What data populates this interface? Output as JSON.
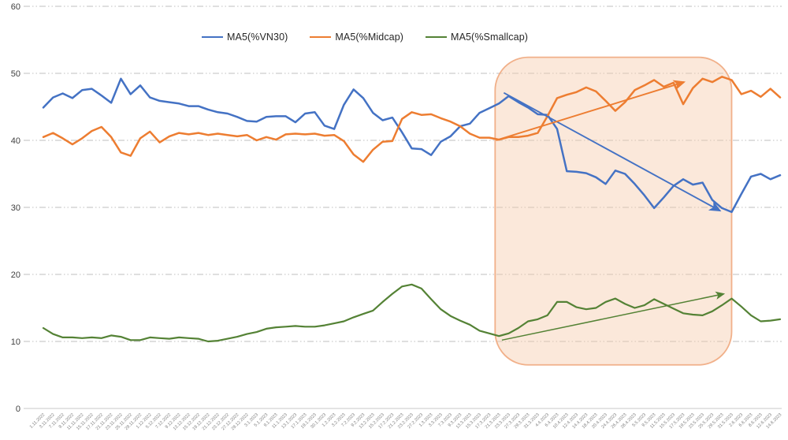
{
  "chart_data": {
    "type": "line",
    "title": "",
    "xlabel": "",
    "ylabel": "",
    "ylim": [
      0,
      60
    ],
    "yticks": [
      0,
      10,
      20,
      30,
      40,
      50,
      60
    ],
    "grid": "horizontal dash-dot",
    "grid_color": "#BFBFBF",
    "axis_label_color": "#404040",
    "x_label_color": "#808080",
    "legend_position": "top-center",
    "categories": [
      "1.11.2022",
      "3.11.2022",
      "7.11.2022",
      "9.11.2022",
      "11.11.2022",
      "15.11.2022",
      "17.11.2022",
      "21.11.2022",
      "23.11.2022",
      "25.11.2022",
      "29.11.2022",
      "1.12.2022",
      "5.12.2022",
      "7.12.2022",
      "9.12.2022",
      "13.12.2022",
      "15.12.2022",
      "19.12.2022",
      "21.12.2022",
      "23.12.2022",
      "27.12.2022",
      "29.12.2022",
      "3.1.2023",
      "5.1.2023",
      "9.1.2023",
      "11.1.2023",
      "13.1.2023",
      "17.1.2023",
      "19.1.2023",
      "30.1.2023",
      "1.2.2023",
      "3.2.2023",
      "7.2.2023",
      "9.2.2023",
      "13.2.2023",
      "15.2.2023",
      "17.2.2023",
      "21.2.2023",
      "23.2.2023",
      "27.2.2023",
      "1.3.2023",
      "3.3.2023",
      "7.3.2023",
      "9.3.2023",
      "13.3.2023",
      "15.3.2023",
      "17.3.2023",
      "21.3.2023",
      "23.3.2023",
      "27.3.2023",
      "29.3.2023",
      "31.3.2023",
      "4.4.2023",
      "6.4.2023",
      "10.4.2023",
      "12.4.2023",
      "14.4.2023",
      "18.4.2023",
      "20.4.2023",
      "24.4.2023",
      "26.4.2023",
      "28.4.2023",
      "5.5.2023",
      "9.5.2023",
      "11.5.2023",
      "15.5.2023",
      "17.5.2023",
      "19.5.2023",
      "23.5.2023",
      "25.5.2023",
      "29.5.2023",
      "31.5.2023",
      "2.6.2023",
      "6.6.2023",
      "8.6.2023",
      "12.6.2023",
      "14.6.2023"
    ],
    "series": [
      {
        "name": "MA5(%VN30)",
        "color": "#4472C4",
        "values": [
          44.9,
          46.4,
          47.0,
          46.3,
          47.5,
          47.7,
          46.7,
          45.6,
          49.2,
          46.9,
          48.2,
          46.4,
          45.9,
          45.7,
          45.5,
          45.1,
          45.1,
          44.6,
          44.2,
          44.0,
          43.5,
          42.9,
          42.8,
          43.5,
          43.6,
          43.6,
          42.7,
          44.0,
          44.2,
          42.2,
          41.7,
          45.3,
          47.6,
          46.3,
          44.1,
          43.0,
          43.4,
          41.2,
          38.8,
          38.7,
          37.8,
          39.8,
          40.6,
          42.1,
          42.5,
          44.1,
          44.8,
          45.5,
          46.6,
          45.7,
          44.9,
          43.9,
          43.8,
          41.7,
          35.4,
          35.3,
          35.1,
          34.5,
          33.5,
          35.5,
          35.0,
          33.5,
          31.8,
          29.9,
          31.5,
          33.2,
          34.2,
          33.4,
          33.7,
          31.1,
          29.9,
          29.3,
          32.0,
          34.6,
          35.0,
          34.2,
          34.8
        ]
      },
      {
        "name": "MA5(%Midcap)",
        "color": "#ED7D31",
        "values": [
          40.5,
          41.1,
          40.3,
          39.4,
          40.3,
          41.4,
          42.0,
          40.5,
          38.2,
          37.7,
          40.3,
          41.3,
          39.7,
          40.6,
          41.1,
          40.9,
          41.1,
          40.8,
          41.0,
          40.8,
          40.6,
          40.8,
          40.0,
          40.5,
          40.1,
          40.9,
          41.0,
          40.9,
          41.0,
          40.7,
          40.8,
          39.9,
          37.9,
          36.8,
          38.6,
          39.8,
          39.9,
          43.2,
          44.2,
          43.8,
          43.9,
          43.3,
          42.8,
          42.1,
          41.0,
          40.4,
          40.4,
          40.1,
          40.5,
          40.5,
          40.7,
          41.1,
          43.6,
          46.3,
          46.8,
          47.2,
          47.9,
          47.3,
          45.9,
          44.4,
          45.7,
          47.5,
          48.2,
          49.0,
          48.0,
          48.6,
          45.4,
          47.8,
          49.2,
          48.7,
          49.5,
          49.0,
          46.9,
          47.4,
          46.5,
          47.7,
          46.4
        ]
      },
      {
        "name": "MA5(%Smallcap)",
        "color": "#548235",
        "values": [
          12.0,
          11.1,
          10.6,
          10.6,
          10.5,
          10.6,
          10.5,
          10.9,
          10.7,
          10.2,
          10.2,
          10.6,
          10.5,
          10.4,
          10.6,
          10.5,
          10.4,
          10.0,
          10.1,
          10.4,
          10.7,
          11.1,
          11.4,
          11.9,
          12.1,
          12.2,
          12.3,
          12.2,
          12.2,
          12.4,
          12.7,
          13.0,
          13.6,
          14.1,
          14.6,
          15.9,
          17.1,
          18.2,
          18.5,
          17.9,
          16.3,
          14.8,
          13.8,
          13.1,
          12.5,
          11.6,
          11.2,
          10.8,
          11.2,
          12.0,
          13.0,
          13.3,
          13.9,
          15.9,
          15.9,
          15.1,
          14.8,
          15.0,
          15.9,
          16.4,
          15.6,
          15.0,
          15.4,
          16.3,
          15.6,
          14.9,
          14.2,
          14.0,
          13.9,
          14.5,
          15.4,
          16.4,
          15.2,
          13.9,
          13.0,
          13.1,
          13.3
        ]
      }
    ],
    "annotations": {
      "highlight_box": {
        "x_start_index": 46.6,
        "x_end_index": 71.0,
        "y_min": 6.5,
        "y_max": 52.4,
        "fill": "#F6C9A8",
        "fill_opacity": 0.42,
        "stroke": "#F0A97E",
        "corner_radius": 42
      },
      "arrows": [
        {
          "name": "vn30-downtrend-arrow",
          "color": "#4472C4",
          "from": [
            47.5,
            47.1
          ],
          "to": [
            69.8,
            29.5
          ]
        },
        {
          "name": "midcap-uptrend-arrow",
          "color": "#ED7D31",
          "from": [
            46.7,
            40.0
          ],
          "to": [
            66.1,
            48.7
          ]
        },
        {
          "name": "smallcap-uptrend-arrow",
          "color": "#548235",
          "from": [
            47.3,
            10.2
          ],
          "to": [
            70.2,
            17.1
          ]
        }
      ]
    }
  }
}
